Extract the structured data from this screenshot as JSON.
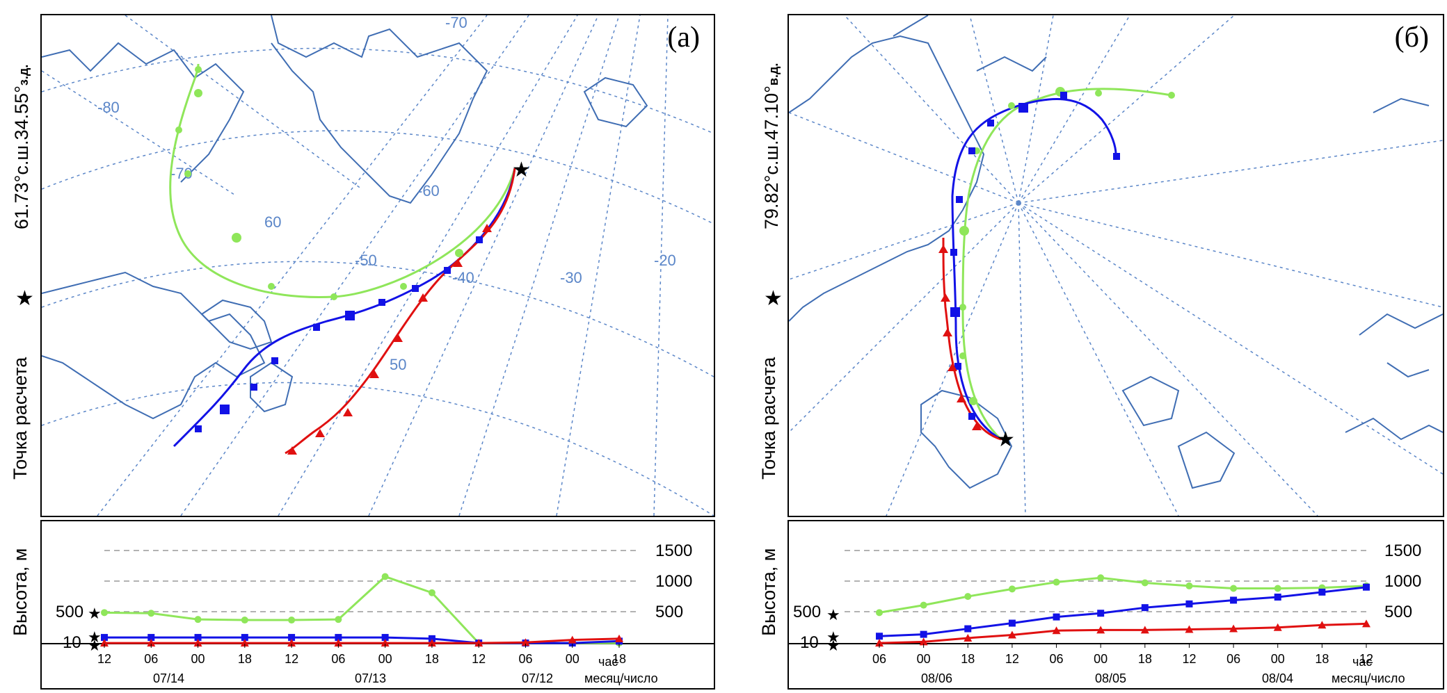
{
  "panels": [
    {
      "id": "a",
      "panel_label": "(a)",
      "coord_label_main": "61.73°с.ш.34.55°",
      "coord_label_suffix": "з.д.",
      "point_label": "Точка расчета",
      "star_symbol": "★",
      "alt_axis_label": "Высота, м",
      "map_grid_labels": [
        "-80",
        "-70",
        "-60",
        "-50",
        "-40",
        "-30",
        "-20",
        "-70",
        "60",
        "50"
      ],
      "alt_ticks": [
        "1500",
        "1000",
        "500"
      ],
      "alt_left_labels": [
        "500",
        "10"
      ],
      "time_ticks": [
        "12",
        "06",
        "00",
        "18",
        "12",
        "06",
        "00",
        "18",
        "12",
        "06",
        "00",
        "18"
      ],
      "date_labels": [
        "07/14",
        "07/13",
        "07/12"
      ],
      "hour_unit": "час",
      "date_unit": "месяц/число",
      "colors": {
        "green": "#8fe65a",
        "blue": "#1212e6",
        "red": "#e01010",
        "grid": "#5b86c8",
        "coast": "#3f6db3"
      }
    },
    {
      "id": "b",
      "panel_label": "(б)",
      "coord_label_main": "79.82°с.ш.47.10°",
      "coord_label_suffix": "в.д.",
      "point_label": "Точка расчета",
      "star_symbol": "★",
      "alt_axis_label": "Высота, м",
      "alt_ticks": [
        "1500",
        "1000",
        "500"
      ],
      "alt_left_labels": [
        "500",
        "10"
      ],
      "time_ticks": [
        "06",
        "00",
        "18",
        "12",
        "06",
        "00",
        "18",
        "12",
        "06",
        "00",
        "18",
        "12"
      ],
      "date_labels": [
        "08/06",
        "08/05",
        "08/04"
      ],
      "hour_unit": "час",
      "date_unit": "месяц/число"
    }
  ],
  "chart_data": [
    {
      "type": "line",
      "panel": "a",
      "x": [
        "12",
        "06",
        "00",
        "18",
        "12",
        "06",
        "00",
        "18",
        "12",
        "06",
        "00",
        "18"
      ],
      "x_dates": {
        "07/14": "00",
        "07/13": "00",
        "07/12": "00"
      },
      "ylabel": "Высота, м",
      "yticks": [
        10,
        500,
        1000,
        1500
      ],
      "series": [
        {
          "color": "#8fe65a",
          "values": [
            500,
            490,
            390,
            380,
            380,
            390,
            1080,
            820,
            10,
            10,
            10,
            10
          ]
        },
        {
          "color": "#1212e6",
          "values": [
            100,
            100,
            100,
            100,
            100,
            100,
            100,
            80,
            10,
            10,
            10,
            40
          ]
        },
        {
          "color": "#e01010",
          "values": [
            10,
            10,
            10,
            10,
            10,
            10,
            10,
            10,
            10,
            20,
            60,
            80
          ]
        }
      ]
    },
    {
      "type": "line",
      "panel": "b",
      "x": [
        "06",
        "00",
        "18",
        "12",
        "06",
        "00",
        "18",
        "12",
        "06",
        "00",
        "18",
        "12"
      ],
      "x_dates": {
        "08/06": "00",
        "08/05": "00",
        "08/04": "00"
      },
      "ylabel": "Высота, м",
      "yticks": [
        10,
        500,
        1000,
        1500
      ],
      "series": [
        {
          "color": "#8fe65a",
          "values": [
            500,
            620,
            760,
            880,
            990,
            1060,
            980,
            930,
            890,
            890,
            900,
            930
          ]
        },
        {
          "color": "#1212e6",
          "values": [
            120,
            150,
            240,
            330,
            430,
            490,
            580,
            640,
            700,
            750,
            830,
            910
          ]
        },
        {
          "color": "#e01010",
          "values": [
            10,
            30,
            90,
            140,
            210,
            220,
            220,
            230,
            240,
            260,
            300,
            320
          ]
        }
      ]
    }
  ]
}
